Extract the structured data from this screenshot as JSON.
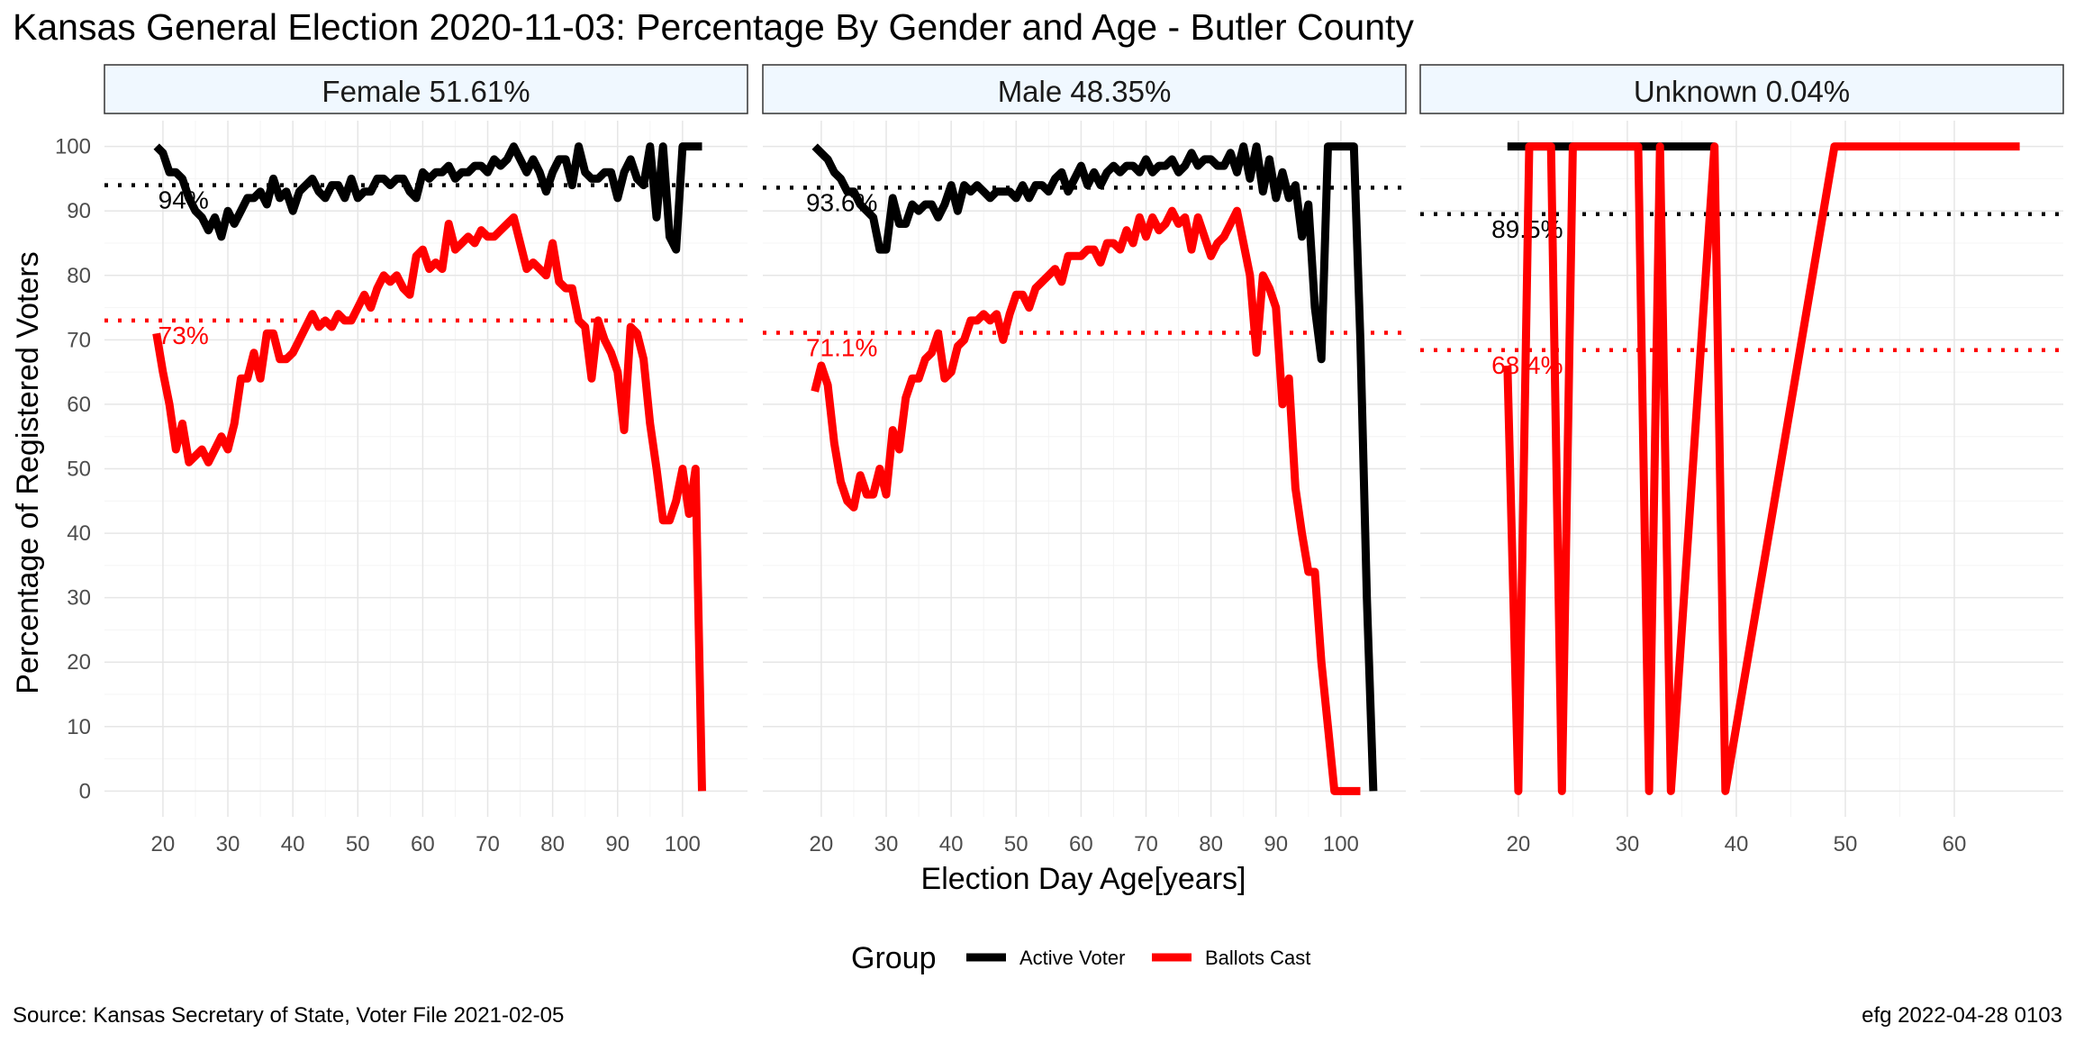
{
  "chart_data": {
    "type": "line",
    "title": "Kansas General Election 2020-11-03:  Percentage By Gender and Age - Butler County",
    "xlabel": "Election Day Age[years]",
    "ylabel": "Percentage of Registered Voters",
    "y_ticks": [
      0,
      10,
      20,
      30,
      40,
      50,
      60,
      70,
      80,
      90,
      100
    ],
    "grid": true,
    "legend": {
      "title": "Group",
      "position": "bottom",
      "entries": [
        {
          "label": "Active Voter",
          "color": "#000000"
        },
        {
          "label": "Ballots Cast",
          "color": "#ff0000"
        }
      ]
    },
    "source": "Source:  Kansas Secretary of State, Voter File  2021-02-05",
    "credit": "efg 2022-04-28 0103",
    "panels": [
      {
        "label": "Female 51.61%",
        "xlim": [
          11,
          110
        ],
        "x_ticks": [
          20,
          30,
          40,
          50,
          60,
          70,
          80,
          90,
          100
        ],
        "ylim": [
          -4,
          104
        ],
        "ref_lines": [
          {
            "series": "Active Voter",
            "value": 94,
            "label": "94%"
          },
          {
            "series": "Ballots Cast",
            "value": 73,
            "label": "73%"
          }
        ],
        "series": [
          {
            "name": "Active Voter",
            "color": "#000000",
            "x": [
              19,
              20,
              21,
              22,
              23,
              24,
              25,
              26,
              27,
              28,
              29,
              30,
              31,
              32,
              33,
              34,
              35,
              36,
              37,
              38,
              39,
              40,
              41,
              42,
              43,
              44,
              45,
              46,
              47,
              48,
              49,
              50,
              51,
              52,
              53,
              54,
              55,
              56,
              57,
              58,
              59,
              60,
              61,
              62,
              63,
              64,
              65,
              66,
              67,
              68,
              69,
              70,
              71,
              72,
              73,
              74,
              75,
              76,
              77,
              78,
              79,
              80,
              81,
              82,
              83,
              84,
              85,
              86,
              87,
              88,
              89,
              90,
              91,
              92,
              93,
              94,
              95,
              96,
              97,
              98,
              99,
              100,
              101,
              102,
              103
            ],
            "y": [
              100,
              99,
              96,
              96,
              95,
              92,
              90,
              89,
              87,
              89,
              86,
              90,
              88,
              90,
              92,
              92,
              93,
              91,
              95,
              92,
              93,
              90,
              93,
              94,
              95,
              93,
              92,
              94,
              94,
              92,
              95,
              92,
              93,
              93,
              95,
              95,
              94,
              95,
              95,
              93,
              92,
              96,
              95,
              96,
              96,
              97,
              95,
              96,
              96,
              97,
              97,
              96,
              98,
              97,
              98,
              100,
              98,
              96,
              98,
              96,
              93,
              96,
              98,
              98,
              94,
              100,
              96,
              95,
              95,
              96,
              96,
              92,
              96,
              98,
              95,
              94,
              100,
              89,
              100,
              86,
              84,
              100,
              100,
              100,
              100
            ]
          },
          {
            "name": "Ballots Cast",
            "color": "#ff0000",
            "x": [
              19,
              20,
              21,
              22,
              23,
              24,
              25,
              26,
              27,
              28,
              29,
              30,
              31,
              32,
              33,
              34,
              35,
              36,
              37,
              38,
              39,
              40,
              41,
              42,
              43,
              44,
              45,
              46,
              47,
              48,
              49,
              50,
              51,
              52,
              53,
              54,
              55,
              56,
              57,
              58,
              59,
              60,
              61,
              62,
              63,
              64,
              65,
              66,
              67,
              68,
              69,
              70,
              71,
              72,
              73,
              74,
              75,
              76,
              77,
              78,
              79,
              80,
              81,
              82,
              83,
              84,
              85,
              86,
              87,
              88,
              89,
              90,
              91,
              92,
              93,
              94,
              95,
              96,
              97,
              98,
              99,
              100,
              101,
              102,
              103
            ],
            "y": [
              71,
              65,
              60,
              53,
              57,
              51,
              52,
              53,
              51,
              53,
              55,
              53,
              57,
              64,
              64,
              68,
              64,
              71,
              71,
              67,
              67,
              68,
              70,
              72,
              74,
              72,
              73,
              72,
              74,
              73,
              73,
              75,
              77,
              75,
              78,
              80,
              79,
              80,
              78,
              77,
              83,
              84,
              81,
              82,
              81,
              88,
              84,
              85,
              86,
              85,
              87,
              86,
              86,
              87,
              88,
              89,
              85,
              81,
              82,
              81,
              80,
              85,
              79,
              78,
              78,
              73,
              72,
              64,
              73,
              70,
              68,
              65,
              56,
              72,
              71,
              67,
              57,
              50,
              42,
              42,
              45,
              50,
              43,
              50,
              0
            ]
          }
        ]
      },
      {
        "label": "Male 48.35%",
        "xlim": [
          11,
          110
        ],
        "x_ticks": [
          20,
          30,
          40,
          50,
          60,
          70,
          80,
          90,
          100
        ],
        "ylim": [
          -4,
          104
        ],
        "ref_lines": [
          {
            "series": "Active Voter",
            "value": 93.6,
            "label": "93.6%"
          },
          {
            "series": "Ballots Cast",
            "value": 71.1,
            "label": "71.1%"
          }
        ],
        "series": [
          {
            "name": "Active Voter",
            "color": "#000000",
            "x": [
              19,
              20,
              21,
              22,
              23,
              24,
              25,
              26,
              27,
              28,
              29,
              30,
              31,
              32,
              33,
              34,
              35,
              36,
              37,
              38,
              39,
              40,
              41,
              42,
              43,
              44,
              45,
              46,
              47,
              48,
              49,
              50,
              51,
              52,
              53,
              54,
              55,
              56,
              57,
              58,
              59,
              60,
              61,
              62,
              63,
              64,
              65,
              66,
              67,
              68,
              69,
              70,
              71,
              72,
              73,
              74,
              75,
              76,
              77,
              78,
              79,
              80,
              81,
              82,
              83,
              84,
              85,
              86,
              87,
              88,
              89,
              90,
              91,
              92,
              93,
              94,
              95,
              96,
              97,
              98,
              99,
              100,
              101,
              102,
              103,
              104,
              105
            ],
            "y": [
              100,
              99,
              98,
              96,
              95,
              93,
              93,
              91,
              90,
              89,
              84,
              84,
              92,
              88,
              88,
              91,
              90,
              91,
              91,
              89,
              91,
              94,
              90,
              94,
              93,
              94,
              93,
              92,
              93,
              93,
              93,
              92,
              94,
              92,
              94,
              94,
              93,
              95,
              96,
              93,
              95,
              97,
              94,
              96,
              94,
              96,
              97,
              96,
              97,
              97,
              96,
              98,
              96,
              97,
              97,
              98,
              96,
              97,
              99,
              97,
              98,
              98,
              97,
              97,
              99,
              96,
              100,
              95,
              100,
              93,
              98,
              92,
              96,
              92,
              94,
              86,
              91,
              75,
              67,
              100,
              100,
              100,
              100,
              100,
              70,
              30,
              0
            ]
          },
          {
            "name": "Ballots Cast",
            "color": "#ff0000",
            "x": [
              19,
              20,
              21,
              22,
              23,
              24,
              25,
              26,
              27,
              28,
              29,
              30,
              31,
              32,
              33,
              34,
              35,
              36,
              37,
              38,
              39,
              40,
              41,
              42,
              43,
              44,
              45,
              46,
              47,
              48,
              49,
              50,
              51,
              52,
              53,
              54,
              55,
              56,
              57,
              58,
              59,
              60,
              61,
              62,
              63,
              64,
              65,
              66,
              67,
              68,
              69,
              70,
              71,
              72,
              73,
              74,
              75,
              76,
              77,
              78,
              79,
              80,
              81,
              82,
              83,
              84,
              85,
              86,
              87,
              88,
              89,
              90,
              91,
              92,
              93,
              94,
              95,
              96,
              97,
              98,
              99,
              100,
              101,
              102,
              103
            ],
            "y": [
              62,
              66,
              63,
              54,
              48,
              45,
              44,
              49,
              46,
              46,
              50,
              46,
              56,
              53,
              61,
              64,
              64,
              67,
              68,
              71,
              64,
              65,
              69,
              70,
              73,
              73,
              74,
              73,
              74,
              70,
              74,
              77,
              77,
              75,
              78,
              79,
              80,
              81,
              79,
              83,
              83,
              83,
              84,
              84,
              82,
              85,
              85,
              84,
              87,
              85,
              89,
              86,
              89,
              87,
              88,
              90,
              88,
              89,
              84,
              89,
              86,
              83,
              85,
              86,
              88,
              90,
              85,
              80,
              68,
              80,
              78,
              75,
              60,
              64,
              47,
              40,
              34,
              34,
              20,
              10,
              0,
              0,
              0,
              0,
              0
            ]
          }
        ]
      },
      {
        "label": "Unknown 0.04%",
        "xlim": [
          11,
          70
        ],
        "x_ticks": [
          20,
          30,
          40,
          50,
          60
        ],
        "ylim": [
          -4,
          104
        ],
        "ref_lines": [
          {
            "series": "Active Voter",
            "value": 89.5,
            "label": "89.5%"
          },
          {
            "series": "Ballots Cast",
            "value": 68.4,
            "label": "68.4%"
          }
        ],
        "series": [
          {
            "name": "Active Voter",
            "color": "#000000",
            "x": [
              19,
              38
            ],
            "y": [
              100,
              100
            ]
          },
          {
            "name": "Ballots Cast",
            "color": "#ff0000",
            "x": [
              19,
              20,
              21,
              22,
              23,
              24,
              25,
              31,
              32,
              33,
              34,
              38,
              39,
              49,
              66
            ],
            "y": [
              66,
              0,
              100,
              100,
              100,
              0,
              100,
              100,
              0,
              100,
              0,
              100,
              0,
              100,
              100
            ]
          }
        ]
      }
    ]
  }
}
